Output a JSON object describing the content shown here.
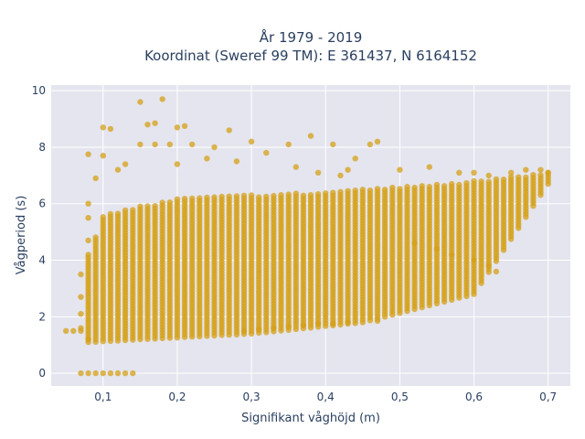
{
  "chart_data": {
    "type": "scatter",
    "title_lines": [
      "År 1979 - 2019",
      "Koordinat (Sweref 99 TM): E 361437, N 6164152"
    ],
    "xlabel": "Signifikant våghöjd (m)",
    "ylabel": "Vågperiod (s)",
    "xlim": [
      0.03,
      0.73
    ],
    "ylim": [
      -0.45,
      10.2
    ],
    "x_ticks": [
      0.1,
      0.2,
      0.3,
      0.4,
      0.5,
      0.6,
      0.7
    ],
    "x_tick_labels": [
      "0,1",
      "0,2",
      "0,3",
      "0,4",
      "0,5",
      "0,6",
      "0,7"
    ],
    "y_ticks": [
      0,
      2,
      4,
      6,
      8,
      10
    ],
    "y_tick_labels": [
      "0",
      "2",
      "4",
      "6",
      "8",
      "10"
    ],
    "grid": true,
    "colors": {
      "marker": "#d4a017",
      "plot_bg": "#e5e5ef",
      "grid": "#ffffff",
      "text": "#2a3f5f"
    },
    "band": {
      "x_start": 0.08,
      "x_end": 0.7,
      "x_step": 0.01,
      "lower": [
        [
          0.08,
          1.1
        ],
        [
          0.3,
          1.4
        ],
        [
          0.45,
          1.8
        ],
        [
          0.6,
          2.8
        ],
        [
          0.7,
          6.7
        ]
      ],
      "upper": [
        [
          0.08,
          4.2
        ],
        [
          0.1,
          5.6
        ],
        [
          0.2,
          6.2
        ],
        [
          0.4,
          6.4
        ],
        [
          0.6,
          6.8
        ],
        [
          0.7,
          7.1
        ]
      ]
    },
    "outliers": [
      {
        "x": 0.05,
        "y": 1.5
      },
      {
        "x": 0.06,
        "y": 1.5
      },
      {
        "x": 0.07,
        "y": 1.6
      },
      {
        "x": 0.07,
        "y": 0.0
      },
      {
        "x": 0.08,
        "y": 0.0
      },
      {
        "x": 0.09,
        "y": 0.0
      },
      {
        "x": 0.1,
        "y": 0.0
      },
      {
        "x": 0.11,
        "y": 0.0
      },
      {
        "x": 0.12,
        "y": 0.0
      },
      {
        "x": 0.13,
        "y": 0.0
      },
      {
        "x": 0.14,
        "y": 0.0
      },
      {
        "x": 0.15,
        "y": 9.6
      },
      {
        "x": 0.18,
        "y": 9.7
      },
      {
        "x": 0.16,
        "y": 8.8
      },
      {
        "x": 0.17,
        "y": 8.85
      },
      {
        "x": 0.1,
        "y": 8.7
      },
      {
        "x": 0.11,
        "y": 8.65
      },
      {
        "x": 0.2,
        "y": 8.7
      },
      {
        "x": 0.21,
        "y": 8.75
      },
      {
        "x": 0.27,
        "y": 8.6
      },
      {
        "x": 0.08,
        "y": 7.75
      },
      {
        "x": 0.1,
        "y": 7.7
      },
      {
        "x": 0.15,
        "y": 8.1
      },
      {
        "x": 0.17,
        "y": 8.1
      },
      {
        "x": 0.19,
        "y": 8.1
      },
      {
        "x": 0.22,
        "y": 8.1
      },
      {
        "x": 0.25,
        "y": 8.0
      },
      {
        "x": 0.3,
        "y": 8.2
      },
      {
        "x": 0.32,
        "y": 7.8
      },
      {
        "x": 0.35,
        "y": 8.1
      },
      {
        "x": 0.38,
        "y": 8.4
      },
      {
        "x": 0.41,
        "y": 8.1
      },
      {
        "x": 0.46,
        "y": 8.1
      },
      {
        "x": 0.47,
        "y": 8.2
      },
      {
        "x": 0.44,
        "y": 7.6
      },
      {
        "x": 0.5,
        "y": 7.2
      },
      {
        "x": 0.54,
        "y": 7.3
      },
      {
        "x": 0.58,
        "y": 7.1
      },
      {
        "x": 0.09,
        "y": 6.9
      },
      {
        "x": 0.12,
        "y": 7.2
      },
      {
        "x": 0.13,
        "y": 7.4
      },
      {
        "x": 0.2,
        "y": 7.4
      },
      {
        "x": 0.24,
        "y": 7.6
      },
      {
        "x": 0.28,
        "y": 7.5
      },
      {
        "x": 0.36,
        "y": 7.3
      },
      {
        "x": 0.39,
        "y": 7.1
      },
      {
        "x": 0.42,
        "y": 7.0
      },
      {
        "x": 0.43,
        "y": 7.2
      },
      {
        "x": 0.08,
        "y": 6.0
      },
      {
        "x": 0.08,
        "y": 5.5
      },
      {
        "x": 0.08,
        "y": 4.7
      },
      {
        "x": 0.07,
        "y": 3.5
      },
      {
        "x": 0.07,
        "y": 2.7
      },
      {
        "x": 0.07,
        "y": 2.1
      },
      {
        "x": 0.07,
        "y": 1.5
      },
      {
        "x": 0.08,
        "y": 1.2
      },
      {
        "x": 0.29,
        "y": 1.5
      },
      {
        "x": 0.31,
        "y": 1.55
      },
      {
        "x": 0.33,
        "y": 1.6
      },
      {
        "x": 0.35,
        "y": 1.65
      },
      {
        "x": 0.37,
        "y": 1.7
      },
      {
        "x": 0.39,
        "y": 1.75
      },
      {
        "x": 0.41,
        "y": 1.75
      },
      {
        "x": 0.43,
        "y": 1.8
      },
      {
        "x": 0.47,
        "y": 1.85
      },
      {
        "x": 0.52,
        "y": 4.6
      },
      {
        "x": 0.55,
        "y": 4.4
      },
      {
        "x": 0.57,
        "y": 4.2
      },
      {
        "x": 0.6,
        "y": 4.0
      },
      {
        "x": 0.62,
        "y": 3.8
      },
      {
        "x": 0.63,
        "y": 3.6
      },
      {
        "x": 0.6,
        "y": 7.1
      },
      {
        "x": 0.62,
        "y": 7.0
      },
      {
        "x": 0.65,
        "y": 7.1
      },
      {
        "x": 0.67,
        "y": 7.2
      },
      {
        "x": 0.69,
        "y": 7.2
      },
      {
        "x": 0.7,
        "y": 7.1
      }
    ]
  }
}
